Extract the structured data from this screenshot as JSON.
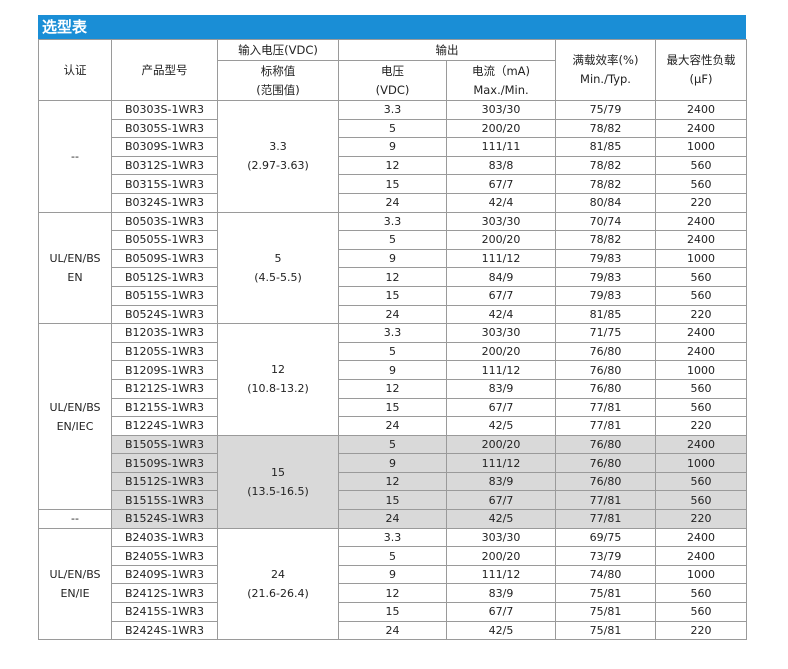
{
  "title": "选型表",
  "headers": {
    "cert": "认证",
    "model": "产品型号",
    "input_voltage": "输入电压(VDC)",
    "output": "输出",
    "efficiency_line1": "满载效率(%)",
    "efficiency_line2": "Min./Typ.",
    "capacitive_line1": "最大容性负载",
    "capacitive_line2": "(µF)",
    "nominal_line1": "标称值",
    "nominal_line2": "(范围值)",
    "voltage_line1": "电压",
    "voltage_line2": "(VDC)",
    "current_line1": "电流（mA)",
    "current_line2": "Max./Min."
  },
  "certs": {
    "g1": "--",
    "g2_line1": "UL/EN/BS",
    "g2_line2": "EN",
    "g3_line1": "UL/EN/BS",
    "g3_line2": "EN/IEC",
    "g4": "--",
    "g5_line1": "UL/EN/BS",
    "g5_line2": "EN/IE"
  },
  "inputs": {
    "g1_line1": "3.3",
    "g1_line2": "(2.97-3.63)",
    "g2_line1": "5",
    "g2_line2": "(4.5-5.5)",
    "g3_line1": "12",
    "g3_line2": "(10.8-13.2)",
    "g4_line1": "15",
    "g4_line2": "(13.5-16.5)",
    "g5_line1": "24",
    "g5_line2": "(21.6-26.4)"
  },
  "rows": [
    {
      "model": "B0303S-1WR3",
      "vout": "3.3",
      "current": "303/30",
      "eff": "75/79",
      "cap": "2400"
    },
    {
      "model": "B0305S-1WR3",
      "vout": "5",
      "current": "200/20",
      "eff": "78/82",
      "cap": "2400"
    },
    {
      "model": "B0309S-1WR3",
      "vout": "9",
      "current": "111/11",
      "eff": "81/85",
      "cap": "1000"
    },
    {
      "model": "B0312S-1WR3",
      "vout": "12",
      "current": "83/8",
      "eff": "78/82",
      "cap": "560"
    },
    {
      "model": "B0315S-1WR3",
      "vout": "15",
      "current": "67/7",
      "eff": "78/82",
      "cap": "560"
    },
    {
      "model": "B0324S-1WR3",
      "vout": "24",
      "current": "42/4",
      "eff": "80/84",
      "cap": "220"
    },
    {
      "model": "B0503S-1WR3",
      "vout": "3.3",
      "current": "303/30",
      "eff": "70/74",
      "cap": "2400"
    },
    {
      "model": "B0505S-1WR3",
      "vout": "5",
      "current": "200/20",
      "eff": "78/82",
      "cap": "2400"
    },
    {
      "model": "B0509S-1WR3",
      "vout": "9",
      "current": "111/12",
      "eff": "79/83",
      "cap": "1000"
    },
    {
      "model": "B0512S-1WR3",
      "vout": "12",
      "current": "84/9",
      "eff": "79/83",
      "cap": "560"
    },
    {
      "model": "B0515S-1WR3",
      "vout": "15",
      "current": "67/7",
      "eff": "79/83",
      "cap": "560"
    },
    {
      "model": "B0524S-1WR3",
      "vout": "24",
      "current": "42/4",
      "eff": "81/85",
      "cap": "220"
    },
    {
      "model": "B1203S-1WR3",
      "vout": "3.3",
      "current": "303/30",
      "eff": "71/75",
      "cap": "2400"
    },
    {
      "model": "B1205S-1WR3",
      "vout": "5",
      "current": "200/20",
      "eff": "76/80",
      "cap": "2400"
    },
    {
      "model": "B1209S-1WR3",
      "vout": "9",
      "current": "111/12",
      "eff": "76/80",
      "cap": "1000"
    },
    {
      "model": "B1212S-1WR3",
      "vout": "12",
      "current": "83/9",
      "eff": "76/80",
      "cap": "560"
    },
    {
      "model": "B1215S-1WR3",
      "vout": "15",
      "current": "67/7",
      "eff": "77/81",
      "cap": "560"
    },
    {
      "model": "B1224S-1WR3",
      "vout": "24",
      "current": "42/5",
      "eff": "77/81",
      "cap": "220"
    },
    {
      "model": "B1505S-1WR3",
      "vout": "5",
      "current": "200/20",
      "eff": "76/80",
      "cap": "2400"
    },
    {
      "model": "B1509S-1WR3",
      "vout": "9",
      "current": "111/12",
      "eff": "76/80",
      "cap": "1000"
    },
    {
      "model": "B1512S-1WR3",
      "vout": "12",
      "current": "83/9",
      "eff": "76/80",
      "cap": "560"
    },
    {
      "model": "B1515S-1WR3",
      "vout": "15",
      "current": "67/7",
      "eff": "77/81",
      "cap": "560"
    },
    {
      "model": "B1524S-1WR3",
      "vout": "24",
      "current": "42/5",
      "eff": "77/81",
      "cap": "220"
    },
    {
      "model": "B2403S-1WR3",
      "vout": "3.3",
      "current": "303/30",
      "eff": "69/75",
      "cap": "2400"
    },
    {
      "model": "B2405S-1WR3",
      "vout": "5",
      "current": "200/20",
      "eff": "73/79",
      "cap": "2400"
    },
    {
      "model": "B2409S-1WR3",
      "vout": "9",
      "current": "111/12",
      "eff": "74/80",
      "cap": "1000"
    },
    {
      "model": "B2412S-1WR3",
      "vout": "12",
      "current": "83/9",
      "eff": "75/81",
      "cap": "560"
    },
    {
      "model": "B2415S-1WR3",
      "vout": "15",
      "current": "67/7",
      "eff": "75/81",
      "cap": "560"
    },
    {
      "model": "B2424S-1WR3",
      "vout": "24",
      "current": "42/5",
      "eff": "75/81",
      "cap": "220"
    }
  ],
  "colors": {
    "title_bar": "#1a8ed6",
    "shade": "#d9d9d9",
    "border": "#9a9a9a"
  }
}
